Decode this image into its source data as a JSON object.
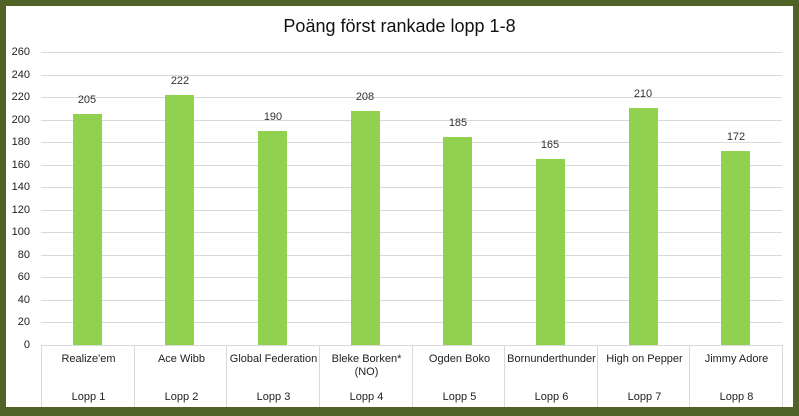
{
  "chart_data": {
    "type": "bar",
    "title": "Poäng först rankade lopp 1-8",
    "categories": [
      "Realize'em",
      "Ace Wibb",
      "Global Federation",
      "Bleke Borken* (NO)",
      "Ogden Boko",
      "Bornunderthunder",
      "High on Pepper",
      "Jimmy Adore"
    ],
    "group_labels": [
      "Lopp 1",
      "Lopp 2",
      "Lopp 3",
      "Lopp 4",
      "Lopp 5",
      "Lopp 6",
      "Lopp 7",
      "Lopp 8"
    ],
    "values": [
      205,
      222,
      190,
      208,
      185,
      165,
      210,
      172
    ],
    "xlabel": "",
    "ylabel": "",
    "ylim": [
      0,
      260
    ],
    "yticks": [
      0,
      20,
      40,
      60,
      80,
      100,
      120,
      140,
      160,
      180,
      200,
      220,
      240,
      260
    ],
    "grid": true,
    "legend": null,
    "bar_color": "#92D050",
    "border_color": "#4F6228"
  },
  "labels": {
    "name": [
      "Realize'em",
      "Ace Wibb",
      "Global Federation",
      "Bleke Borken*",
      "Ogden Boko",
      "Bornunderthunder",
      "High on Pepper",
      "Jimmy Adore"
    ],
    "name2": [
      "",
      "",
      "",
      "(NO)",
      "",
      "",
      "",
      ""
    ]
  }
}
